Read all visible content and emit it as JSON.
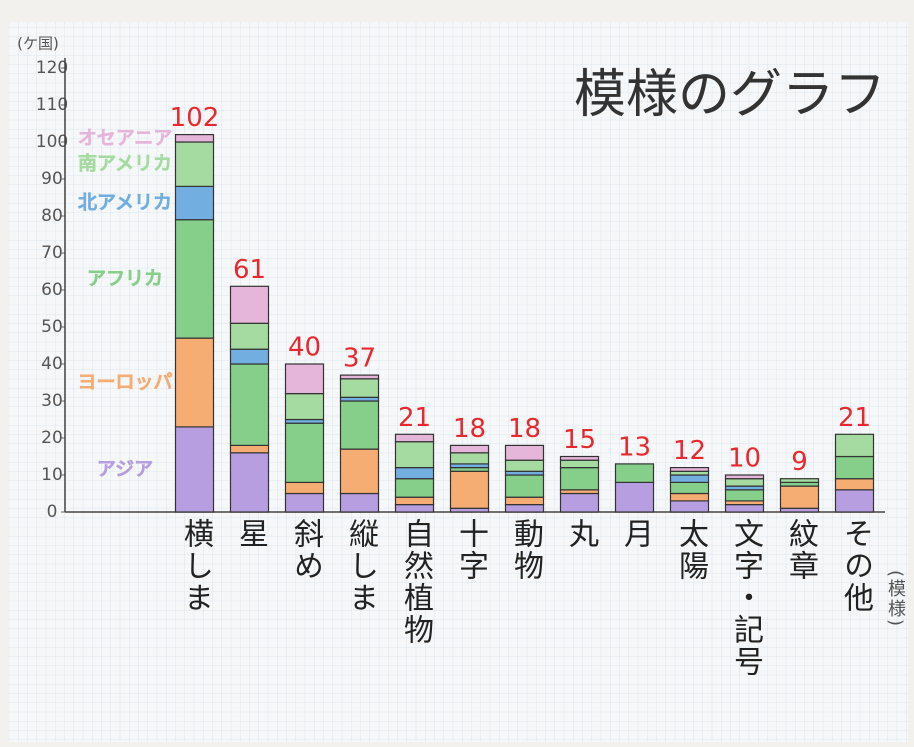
{
  "chart_data": {
    "type": "stacked-bar",
    "title": "模様のグラフ",
    "y_label": "(ケ国)",
    "x_label": "(模様)",
    "categories": [
      "横しま",
      "星",
      "斜め",
      "縦しま",
      "自然植物",
      "十字",
      "動物",
      "丸",
      "月",
      "太陽",
      "文字・記号",
      "紋章",
      "その他"
    ],
    "series": [
      {
        "name": "アジア",
        "color": "#b79ee0",
        "values": [
          23,
          16,
          5,
          5,
          2,
          1,
          2,
          5,
          8,
          3,
          2,
          1,
          6
        ]
      },
      {
        "name": "ヨーロッパ",
        "color": "#f5ad74",
        "values": [
          24,
          2,
          3,
          12,
          2,
          10,
          2,
          1,
          0,
          2,
          1,
          6,
          3
        ]
      },
      {
        "name": "アフリカ",
        "color": "#86cf8a",
        "values": [
          32,
          22,
          16,
          13,
          5,
          1,
          6,
          6,
          5,
          3,
          3,
          1,
          6
        ]
      },
      {
        "name": "北アメリカ",
        "color": "#72afe0",
        "values": [
          9,
          4,
          1,
          1,
          3,
          1,
          1,
          0,
          0,
          2,
          1,
          0,
          0
        ]
      },
      {
        "name": "南アメリカ",
        "color": "#a5dba0",
        "values": [
          12,
          7,
          7,
          5,
          7,
          3,
          3,
          2,
          0,
          1,
          2,
          1,
          6
        ]
      },
      {
        "name": "オセアニア",
        "color": "#e6b6da",
        "values": [
          2,
          10,
          8,
          1,
          2,
          2,
          4,
          1,
          0,
          1,
          1,
          0,
          0
        ]
      }
    ],
    "totals": [
      102,
      61,
      40,
      37,
      21,
      18,
      18,
      15,
      13,
      12,
      10,
      9,
      21
    ],
    "ylim": [
      0,
      120
    ],
    "yticks": [
      0,
      10,
      20,
      30,
      40,
      50,
      60,
      70,
      80,
      90,
      100,
      110,
      120
    ],
    "grid": true
  }
}
